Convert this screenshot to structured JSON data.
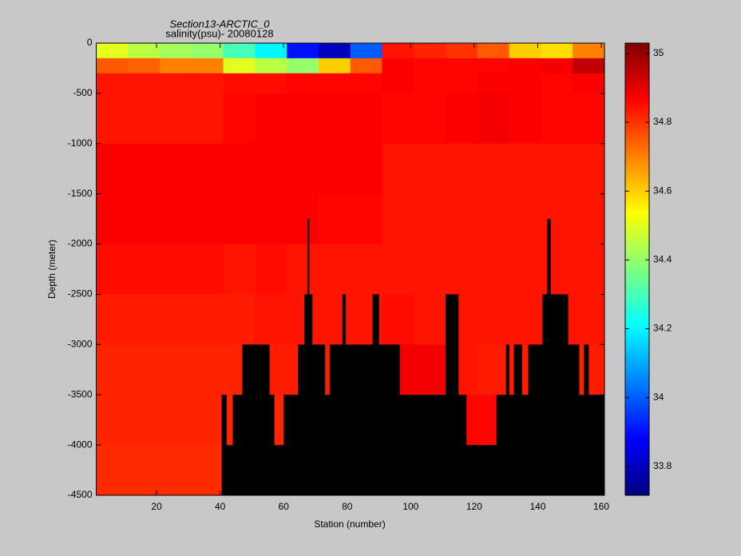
{
  "chart_data": {
    "type": "section",
    "title": "Section13-ARCTIC_0",
    "subtitle": "salinity(psu)- 20080128",
    "x_label": "Station (number)",
    "y_label": "Depth (meter)",
    "xlim": [
      1,
      161
    ],
    "xticks": [
      20,
      40,
      60,
      80,
      100,
      120,
      140,
      160
    ],
    "ylim": [
      -4500,
      0
    ],
    "yticks": [
      -4500,
      -4000,
      -3500,
      -3000,
      -2500,
      -2000,
      -1500,
      -1000,
      -500,
      0
    ],
    "colormap": "jet",
    "clim": [
      33.716,
      35.03
    ],
    "cticks": [
      33.8,
      34,
      34.2,
      34.4,
      34.6,
      34.8,
      35
    ],
    "x_edges": [
      1,
      11,
      21,
      31,
      41,
      51,
      61,
      71,
      81,
      91,
      101,
      111,
      121,
      131,
      141,
      151,
      161
    ],
    "depth_edges": [
      0,
      -150,
      -300,
      -500,
      -1000,
      -1500,
      -2000,
      -2500,
      -3000,
      -3500,
      -4000,
      -4500
    ],
    "values": [
      [
        34.5,
        34.45,
        34.42,
        34.4,
        34.3,
        34.2,
        33.9,
        33.8,
        34.0,
        34.84,
        34.82,
        34.8,
        34.75,
        34.6,
        34.58,
        34.7
      ],
      [
        34.75,
        34.74,
        34.7,
        34.7,
        34.5,
        34.45,
        34.4,
        34.6,
        34.75,
        34.87,
        34.86,
        34.86,
        34.86,
        34.87,
        34.88,
        34.95
      ],
      [
        34.84,
        34.84,
        34.84,
        34.84,
        34.85,
        34.85,
        34.86,
        34.86,
        34.86,
        34.87,
        34.86,
        34.86,
        34.87,
        34.87,
        34.86,
        34.87
      ],
      [
        34.84,
        34.84,
        34.84,
        34.84,
        34.86,
        34.87,
        34.87,
        34.87,
        34.87,
        34.86,
        34.86,
        34.87,
        34.88,
        34.87,
        34.86,
        34.86
      ],
      [
        34.87,
        34.87,
        34.87,
        34.87,
        34.87,
        34.87,
        34.87,
        34.87,
        34.87,
        34.84,
        34.84,
        34.84,
        34.84,
        34.84,
        34.84,
        34.84
      ],
      [
        34.87,
        34.87,
        34.87,
        34.87,
        34.87,
        34.87,
        34.87,
        34.86,
        34.86,
        34.84,
        34.84,
        34.84,
        34.84,
        34.84,
        34.84,
        34.84
      ],
      [
        34.85,
        34.85,
        34.85,
        34.85,
        34.84,
        34.85,
        34.84,
        34.84,
        34.84,
        34.84,
        34.84,
        34.84,
        34.84,
        34.84,
        34.84,
        34.84
      ],
      [
        34.83,
        34.83,
        34.83,
        34.83,
        34.83,
        34.84,
        34.84,
        34.84,
        34.84,
        34.85,
        34.84,
        34.84,
        34.84,
        34.84,
        34.84,
        34.84
      ],
      [
        34.82,
        34.82,
        34.82,
        34.82,
        34.82,
        34.83,
        34.83,
        34.83,
        34.84,
        34.88,
        34.88,
        34.84,
        34.83,
        34.83,
        34.83,
        34.83
      ],
      [
        34.82,
        34.82,
        34.82,
        34.82,
        34.82,
        34.82,
        34.82,
        34.82,
        34.82,
        34.82,
        34.82,
        34.86,
        34.86,
        34.82,
        34.82,
        34.82
      ],
      [
        34.81,
        34.81,
        34.81,
        34.81,
        34.81,
        34.81,
        34.81,
        34.81,
        34.81,
        34.81,
        34.81,
        34.81,
        34.81,
        34.81,
        34.81,
        34.81
      ]
    ],
    "bottom_color": "#000000",
    "bottom_edges": [
      40.5,
      42,
      44,
      47,
      55.5,
      57,
      60,
      64.5,
      66.5,
      67.5,
      68,
      69,
      73,
      74.5,
      78.5,
      79.5,
      88,
      90,
      96.5,
      111,
      115,
      117.5,
      127,
      130,
      131,
      132.5,
      135,
      137,
      141.5,
      143,
      144,
      149.5,
      153,
      154.5,
      156,
      161
    ],
    "bottom_depth": [
      -3500,
      -4000,
      -3500,
      -3000,
      -3500,
      -4000,
      -3500,
      -3000,
      -2500,
      -1750,
      -2500,
      -3000,
      -3500,
      -3000,
      -2500,
      -3000,
      -2500,
      -3000,
      -3500,
      -2500,
      -3500,
      -4000,
      -3500,
      -3000,
      -3500,
      -3000,
      -3500,
      -3000,
      -2500,
      -1750,
      -2500,
      -3000,
      -3500,
      -3000,
      -3500
    ]
  }
}
